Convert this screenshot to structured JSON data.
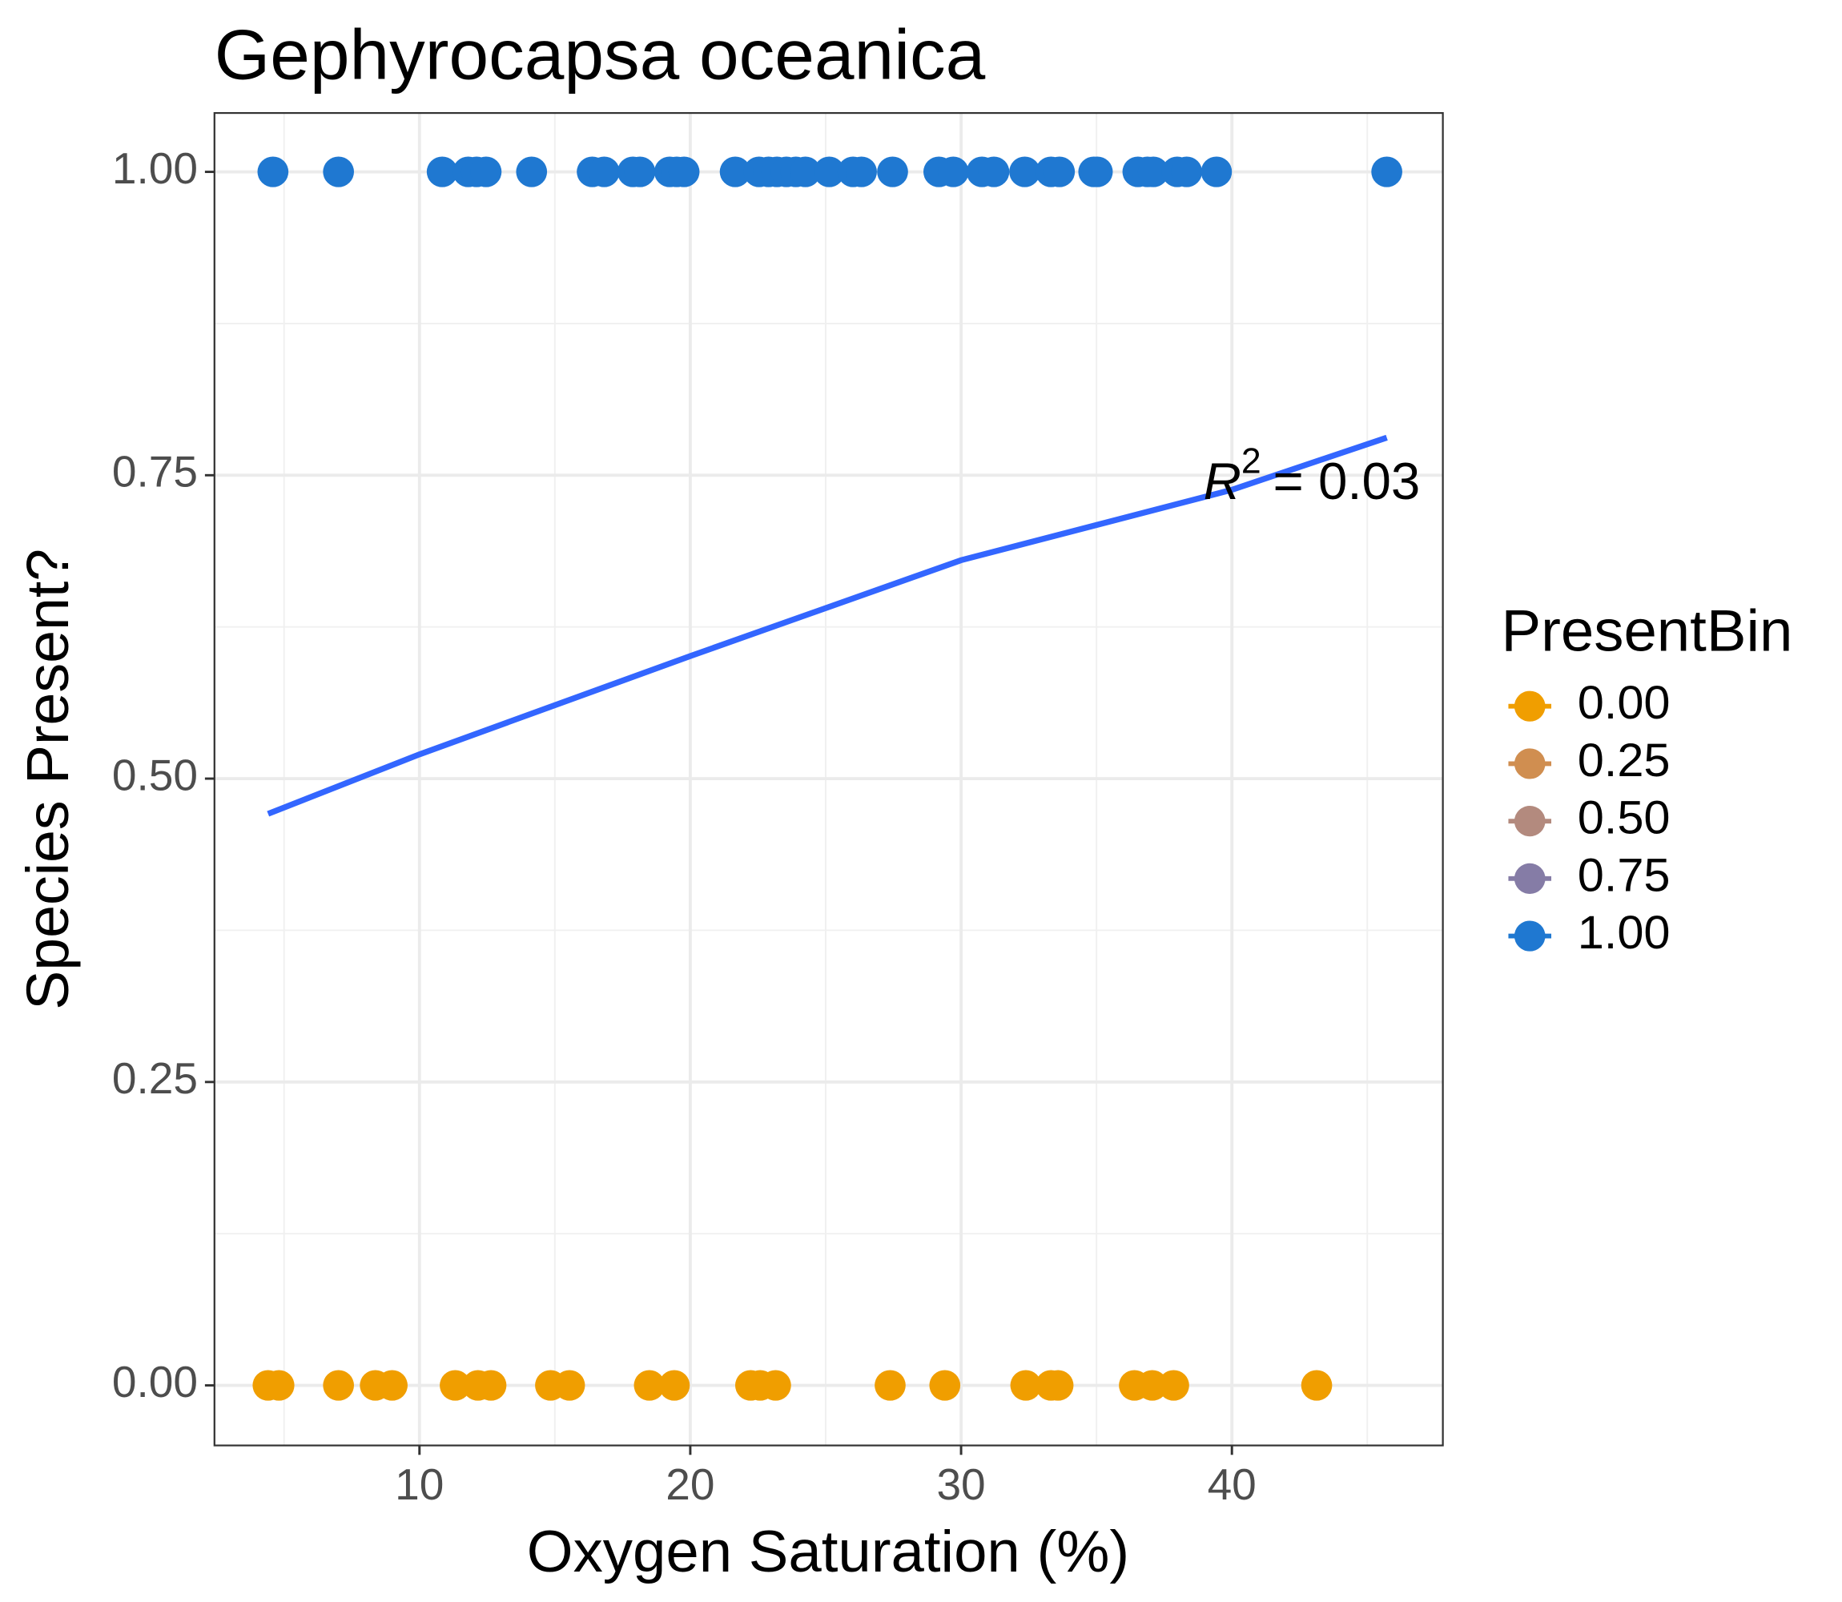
{
  "chart_data": {
    "type": "scatter",
    "title": "Gephyrocapsa oceanica",
    "x_label": "Oxygen Saturation (%)",
    "y_label": "Species Present?",
    "xlim": [
      2.43,
      47.79
    ],
    "ylim": [
      -0.0495,
      1.0485
    ],
    "xticks": [
      10,
      20,
      30,
      40
    ],
    "yticks": [
      {
        "value": 0,
        "label": "0.00"
      },
      {
        "value": 0.25,
        "label": "0.25"
      },
      {
        "value": 0.5,
        "label": "0.50"
      },
      {
        "value": 0.75,
        "label": "0.75"
      },
      {
        "value": 1,
        "label": "1.00"
      }
    ],
    "x_minor_grid": [
      5,
      15,
      25,
      35,
      45
    ],
    "y_minor_grid": [
      0.125,
      0.375,
      0.625,
      0.875
    ],
    "grid": true,
    "series": [
      {
        "color": "#f09e00",
        "x": [
          4.41,
          4.81,
          7.01,
          8.37,
          8.99,
          11.32,
          12.16,
          12.64,
          14.84,
          15.54,
          18.49,
          19.41,
          22.23,
          22.58,
          23.15,
          27.38,
          29.4,
          32.39,
          33.32,
          33.58,
          36.4,
          37.06,
          37.85,
          43.13
        ],
        "values": [
          0,
          0,
          0,
          0,
          0,
          0,
          0,
          0,
          0,
          0,
          0,
          0,
          0,
          0,
          0,
          0,
          0,
          0,
          0,
          0,
          0,
          0,
          0,
          0
        ]
      },
      {
        "color": "#1f78d1",
        "x": [
          4.59,
          7.01,
          10.84,
          11.8,
          12.11,
          12.46,
          14.14,
          16.38,
          16.82,
          17.88,
          18.14,
          19.24,
          19.5,
          19.77,
          21.66,
          22.54,
          22.89,
          23.2,
          23.55,
          23.9,
          24.25,
          25.13,
          26.01,
          26.32,
          27.47,
          29.18,
          29.71,
          30.77,
          31.21,
          32.35,
          33.32,
          33.63,
          34.9,
          35.03,
          36.53,
          36.88,
          37.1,
          37.98,
          38.33,
          39.43,
          45.72
        ],
        "values": [
          1,
          1,
          1,
          1,
          1,
          1,
          1,
          1,
          1,
          1,
          1,
          1,
          1,
          1,
          1,
          1,
          1,
          1,
          1,
          1,
          1,
          1,
          1,
          1,
          1,
          1,
          1,
          1,
          1,
          1,
          1,
          1,
          1,
          1,
          1,
          1,
          1,
          1,
          1,
          1,
          1
        ]
      }
    ],
    "fit_line": {
      "color": "#3366ff",
      "x": [
        4.41,
        10,
        20,
        30,
        40,
        45.72
      ],
      "values": [
        0.471,
        0.52,
        0.601,
        0.68,
        0.738,
        0.781
      ]
    },
    "annotation": {
      "italic": "R",
      "sup": "2",
      "rest": "= 0.03"
    },
    "legend": {
      "title": "PresentBin",
      "items": [
        {
          "label": "0.00",
          "color": "#f09e00"
        },
        {
          "label": "0.25",
          "color": "#d08e50"
        },
        {
          "label": "0.50",
          "color": "#b38a7e"
        },
        {
          "label": "0.75",
          "color": "#857ca6"
        },
        {
          "label": "1.00",
          "color": "#1f78d1"
        }
      ]
    }
  }
}
